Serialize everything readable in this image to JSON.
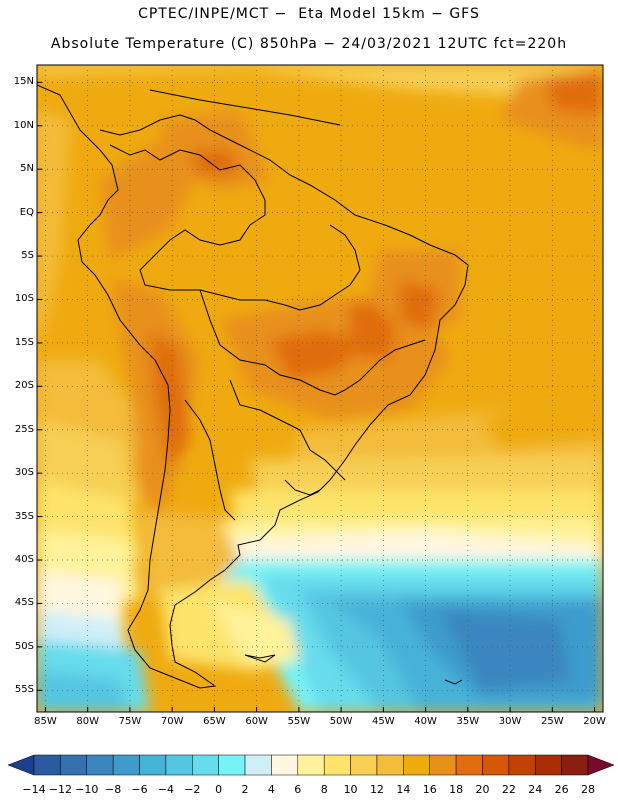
{
  "header": {
    "line1": "CPTEC/INPE/MCT −  Eta Model 15km − GFS",
    "line2": "Absolute Temperature (C) 850hPa − 24/03/2021 12UTC fct=220h"
  },
  "map": {
    "lat_labels": [
      "15N",
      "10N",
      "5N",
      "EQ",
      "5S",
      "10S",
      "15S",
      "20S",
      "25S",
      "30S",
      "35S",
      "40S",
      "45S",
      "50S",
      "55S"
    ],
    "lon_labels": [
      "85W",
      "80W",
      "75W",
      "70W",
      "65W",
      "60W",
      "55W",
      "50W",
      "45W",
      "40W",
      "35W",
      "30W",
      "25W",
      "20W"
    ],
    "extent": {
      "lon_min": -86,
      "lon_max": -19,
      "lat_min": -57.5,
      "lat_max": 17
    },
    "gridlines": "dotted"
  },
  "colorbar": {
    "labels": [
      "-14",
      "-12",
      "-10",
      "-8",
      "-6",
      "-4",
      "-2",
      "0",
      "2",
      "4",
      "6",
      "8",
      "10",
      "12",
      "14",
      "16",
      "18",
      "20",
      "22",
      "24",
      "26",
      "28"
    ],
    "colors": [
      "#1d3f8f",
      "#2a5aa0",
      "#3570b0",
      "#3a86c0",
      "#3e9ccc",
      "#46b2d8",
      "#55c6e2",
      "#66dcec",
      "#78f2f6",
      "#cfeff7",
      "#fff6df",
      "#fff29a",
      "#fde36b",
      "#f7cf55",
      "#f3bc3a",
      "#efaa10",
      "#e8901c",
      "#e06d10",
      "#d45808",
      "#c24204",
      "#aa2e04",
      "#8a1e10",
      "#7a0a2a"
    ]
  }
}
